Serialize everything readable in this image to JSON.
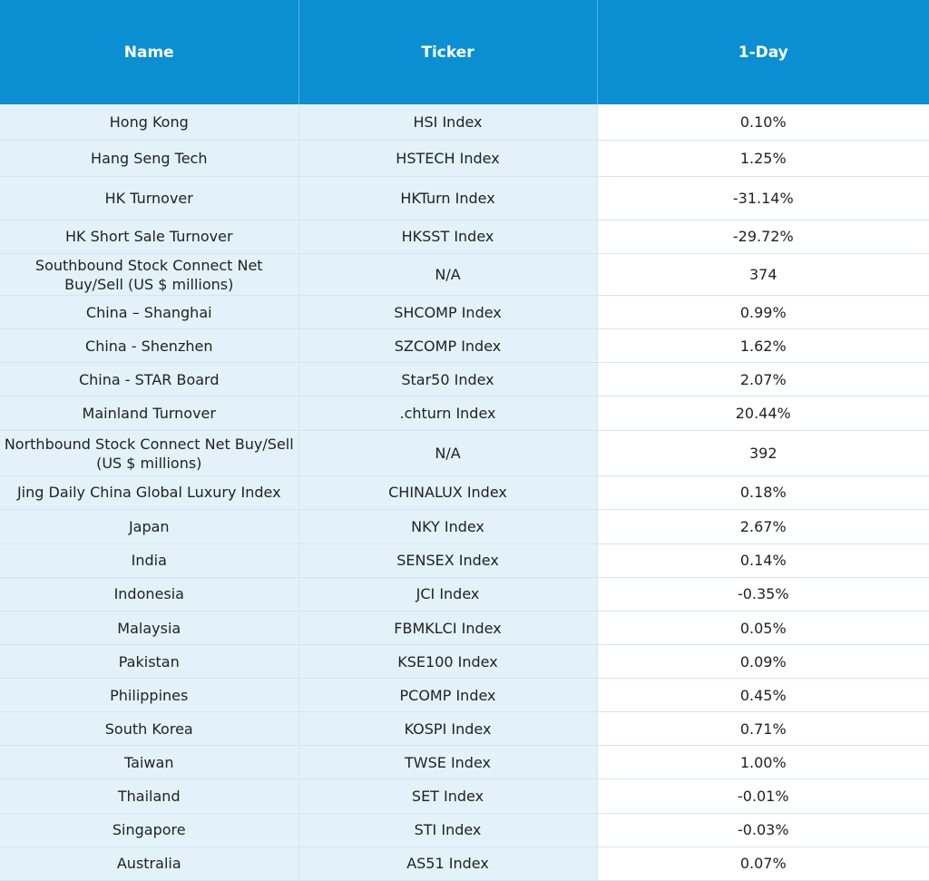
{
  "table": {
    "header": [
      "Name",
      "Ticker",
      "1-Day"
    ],
    "rows": [
      [
        "Hong Kong",
        "HSI Index",
        "0.10%"
      ],
      [
        "Hang Seng Tech",
        "HSTECH Index",
        "1.25%"
      ],
      [
        "HK Turnover",
        "HKTurn Index",
        "-31.14%"
      ],
      [
        "HK Short Sale Turnover",
        "HKSST Index",
        "-29.72%"
      ],
      [
        "Southbound Stock Connect Net Buy/Sell (US $ millions)",
        "N/A",
        "374"
      ],
      [
        "China – Shanghai",
        "SHCOMP Index",
        "0.99%"
      ],
      [
        "China - Shenzhen",
        "SZCOMP Index",
        "1.62%"
      ],
      [
        "China - STAR Board",
        "Star50 Index",
        "2.07%"
      ],
      [
        "Mainland Turnover",
        ".chturn Index",
        "20.44%"
      ],
      [
        "Northbound Stock Connect Net Buy/Sell (US $ millions)",
        "N/A",
        "392"
      ],
      [
        "Jing Daily China Global Luxury Index",
        "CHINALUX Index",
        "0.18%"
      ],
      [
        "Japan",
        "NKY Index",
        "2.67%"
      ],
      [
        "India",
        "SENSEX Index",
        "0.14%"
      ],
      [
        "Indonesia",
        "JCI Index",
        "-0.35%"
      ],
      [
        "Malaysia",
        "FBMKLCI Index",
        "0.05%"
      ],
      [
        "Pakistan",
        "KSE100 Index",
        "0.09%"
      ],
      [
        "Philippines",
        "PCOMP Index",
        "0.45%"
      ],
      [
        "South Korea",
        "KOSPI Index",
        "0.71%"
      ],
      [
        "Taiwan",
        "TWSE Index",
        "1.00%"
      ],
      [
        "Thailand",
        "SET Index",
        "-0.01%"
      ],
      [
        "Singapore",
        "STI Index",
        "-0.03%"
      ],
      [
        "Australia",
        "AS51 Index",
        "0.07%"
      ]
    ]
  }
}
